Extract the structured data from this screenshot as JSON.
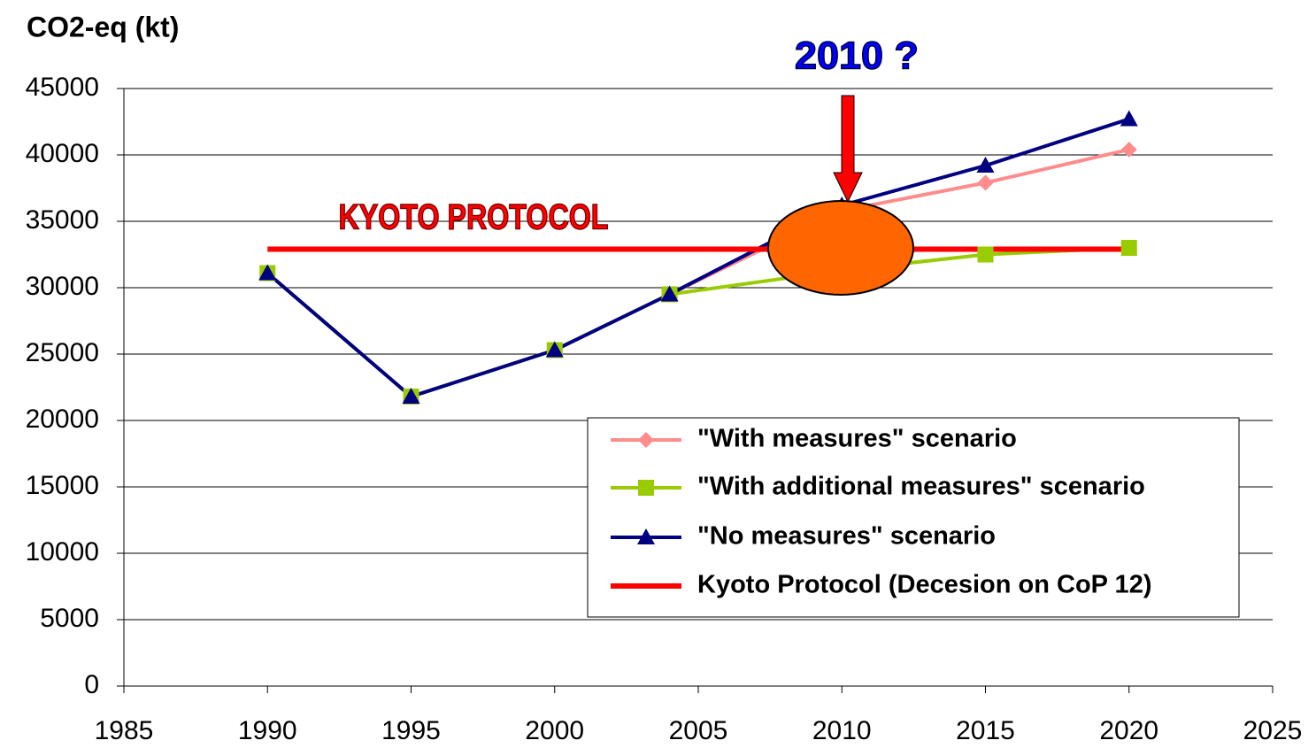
{
  "chart_data": {
    "type": "line",
    "y_label": "CO2-eq (kt)",
    "annotations": [
      "KYOTO PROTOCOL",
      "2010 ?"
    ],
    "xlim": [
      1985,
      2025
    ],
    "xticks": [
      1985,
      1990,
      1995,
      2000,
      2005,
      2010,
      2015,
      2020,
      2025
    ],
    "ylim": [
      0,
      45000
    ],
    "yticks": [
      0,
      5000,
      10000,
      15000,
      20000,
      25000,
      30000,
      35000,
      40000,
      45000
    ],
    "grid": true,
    "legend": "lower right",
    "series": [
      {
        "name": "\"With measures\" scenario",
        "color": "#ff8c8c",
        "marker": "diamond",
        "x": [
          1990,
          1995,
          2000,
          2004,
          2010,
          2015,
          2020
        ],
        "values": [
          31100,
          21800,
          25300,
          29500,
          35800,
          37900,
          40400
        ]
      },
      {
        "name": "\"With additional measures\" scenario",
        "color": "#99cc00",
        "marker": "square",
        "x": [
          1990,
          1995,
          2000,
          2004,
          2010,
          2015,
          2020
        ],
        "values": [
          31100,
          21800,
          25300,
          29500,
          31300,
          32500,
          33000
        ]
      },
      {
        "name": "\"No measures\" scenario",
        "color": "#000080",
        "marker": "triangle",
        "x": [
          1990,
          1995,
          2000,
          2004,
          2010,
          2015,
          2020
        ],
        "values": [
          31100,
          21800,
          25300,
          29500,
          36200,
          39200,
          42700
        ]
      },
      {
        "name": "Kyoto Protocol (Decesion on CoP 12)",
        "color": "#ff0000",
        "marker": "none",
        "x": [
          1990,
          2020
        ],
        "values": [
          32900,
          32900
        ]
      }
    ]
  }
}
